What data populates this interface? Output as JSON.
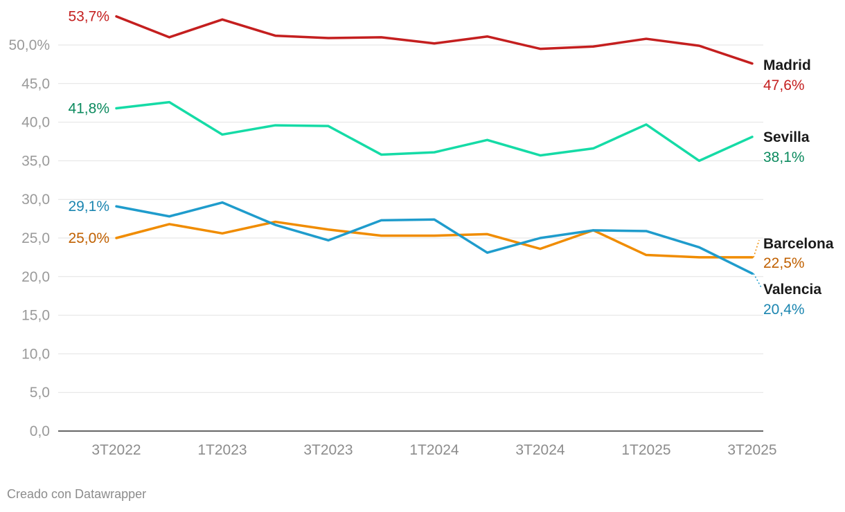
{
  "chart_data": {
    "type": "line",
    "x": [
      "3T2022",
      "4T2022",
      "1T2023",
      "2T2023",
      "3T2023",
      "4T2023",
      "1T2024",
      "2T2024",
      "3T2024",
      "4T2024",
      "1T2025",
      "2T2025",
      "3T2025"
    ],
    "x_tick_labels": [
      "3T2022",
      "1T2023",
      "3T2023",
      "1T2024",
      "3T2024",
      "1T2025",
      "3T2025"
    ],
    "y_tick_labels": [
      "0,0",
      "5,0",
      "10,0",
      "15,0",
      "20,0",
      "25,0",
      "30,0",
      "35,0",
      "40,0",
      "45,0",
      "50,0%"
    ],
    "ylim": [
      0,
      55
    ],
    "grid": true,
    "series": [
      {
        "name": "Madrid",
        "color": "#c41f1f",
        "label_color": "#c41f1f",
        "start_label": "53,7%",
        "end_label": "47,6%",
        "values": [
          53.7,
          51.0,
          53.3,
          51.2,
          50.9,
          51.0,
          50.2,
          51.1,
          49.5,
          49.8,
          50.8,
          49.9,
          47.6
        ]
      },
      {
        "name": "Sevilla",
        "color": "#15dba6",
        "label_color": "#0b8a5e",
        "start_label": "41,8%",
        "end_label": "38,1%",
        "values": [
          41.8,
          42.6,
          38.4,
          39.6,
          39.5,
          35.8,
          36.1,
          37.7,
          35.7,
          36.6,
          39.7,
          35.0,
          38.1
        ]
      },
      {
        "name": "Barcelona",
        "color": "#f08c00",
        "label_color": "#c06000",
        "start_label": "25,0%",
        "end_label": "22,5%",
        "values": [
          25.0,
          26.8,
          25.6,
          27.1,
          26.1,
          25.3,
          25.3,
          25.5,
          23.6,
          26.0,
          22.8,
          22.5,
          22.5
        ]
      },
      {
        "name": "Valencia",
        "color": "#1f9ccc",
        "label_color": "#1a85b0",
        "start_label": "29,1%",
        "end_label": "20,4%",
        "values": [
          29.1,
          27.8,
          29.6,
          26.7,
          24.7,
          27.3,
          27.4,
          23.1,
          25.0,
          26.0,
          25.9,
          23.8,
          20.4
        ]
      }
    ]
  },
  "footer": "Creado con Datawrapper"
}
